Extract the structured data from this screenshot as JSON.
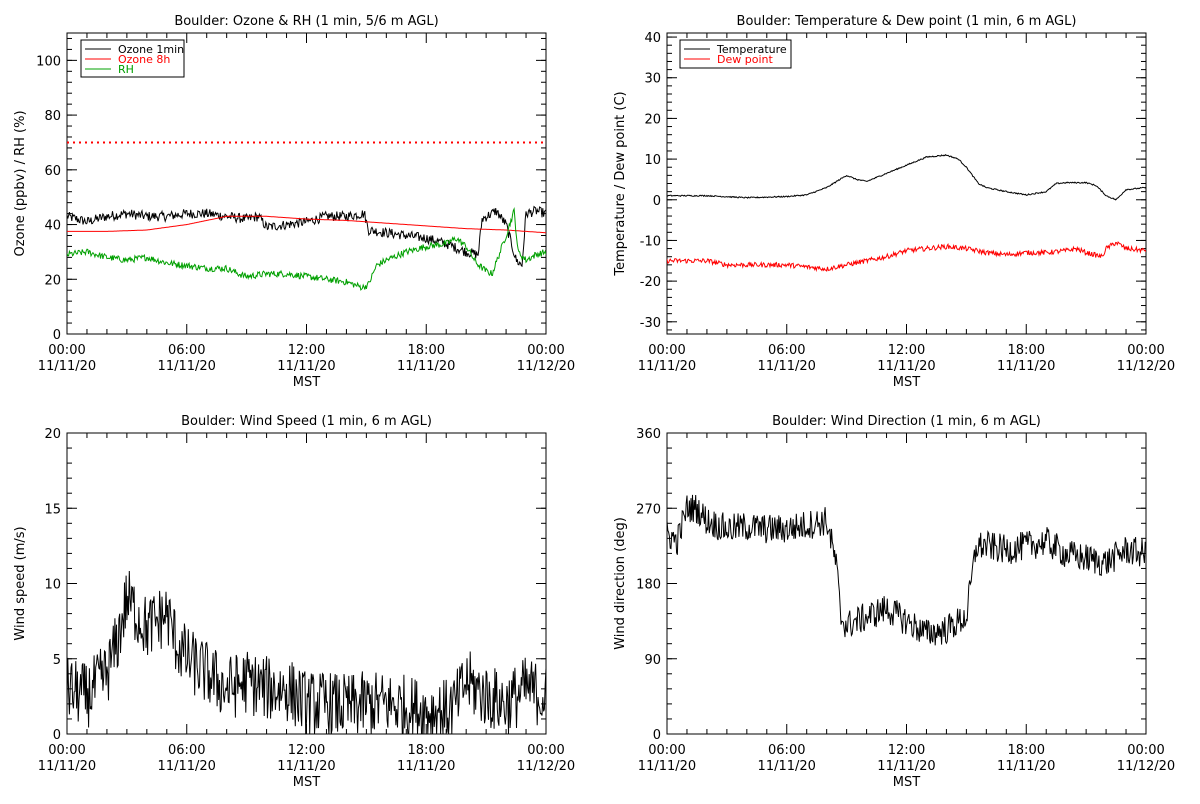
{
  "chart_data": [
    {
      "type": "line",
      "title": "Boulder: Ozone & RH (1 min, 5/6 m AGL)",
      "xlabel": "MST",
      "ylabel": "Ozone (ppbv) / RH (%)",
      "ylim": [
        0,
        110
      ],
      "y_ticks": [
        0,
        20,
        40,
        60,
        80,
        100
      ],
      "x_ticks": [
        {
          "hour": 0,
          "time": "00:00",
          "date": "11/11/20"
        },
        {
          "hour": 6,
          "time": "06:00",
          "date": "11/11/20"
        },
        {
          "hour": 12,
          "time": "12:00",
          "date": "11/11/20"
        },
        {
          "hour": 18,
          "time": "18:00",
          "date": "11/11/20"
        },
        {
          "hour": 24,
          "time": "00:00",
          "date": "11/12/20"
        }
      ],
      "legend_position": "top-left",
      "reference_line": {
        "y": 70,
        "color": "#ff0000",
        "style": "dotted"
      },
      "series": [
        {
          "name": "Ozone 1min",
          "color": "#000000",
          "noise": 1.8,
          "points": [
            [
              0,
              43
            ],
            [
              1,
              41
            ],
            [
              2,
              43
            ],
            [
              3,
              44
            ],
            [
              4,
              43
            ],
            [
              5,
              43
            ],
            [
              6,
              44
            ],
            [
              7,
              44
            ],
            [
              8,
              43
            ],
            [
              9,
              42
            ],
            [
              9.6,
              43
            ],
            [
              10,
              39
            ],
            [
              11,
              40
            ],
            [
              12,
              41
            ],
            [
              13,
              43
            ],
            [
              14,
              43
            ],
            [
              14.9,
              44
            ],
            [
              15.1,
              38
            ],
            [
              16,
              37
            ],
            [
              17,
              36
            ],
            [
              18,
              35
            ],
            [
              19,
              33
            ],
            [
              20,
              30
            ],
            [
              20.6,
              29
            ],
            [
              20.8,
              42
            ],
            [
              21.5,
              45
            ],
            [
              22,
              40
            ],
            [
              22.5,
              27
            ],
            [
              22.8,
              25
            ],
            [
              23,
              44
            ],
            [
              23.5,
              45
            ],
            [
              24,
              44
            ]
          ]
        },
        {
          "name": "Ozone 8h",
          "color": "#ff0000",
          "noise": 0,
          "points": [
            [
              0,
              37.5
            ],
            [
              2,
              37.5
            ],
            [
              4,
              38
            ],
            [
              6,
              40
            ],
            [
              8,
              43
            ],
            [
              10,
              43
            ],
            [
              12,
              42
            ],
            [
              14,
              41.5
            ],
            [
              16,
              40.5
            ],
            [
              18,
              39.5
            ],
            [
              20,
              38.5
            ],
            [
              22,
              38
            ],
            [
              24,
              37
            ]
          ]
        },
        {
          "name": "RH",
          "color": "#00a000",
          "noise": 1.2,
          "points": [
            [
              0,
              29
            ],
            [
              1,
              30
            ],
            [
              2,
              28
            ],
            [
              3,
              27
            ],
            [
              4,
              28
            ],
            [
              5,
              26
            ],
            [
              6,
              25
            ],
            [
              7,
              24
            ],
            [
              8,
              24
            ],
            [
              8.6,
              22
            ],
            [
              9,
              21
            ],
            [
              10,
              22
            ],
            [
              11,
              22
            ],
            [
              12,
              21
            ],
            [
              13,
              20
            ],
            [
              14,
              19
            ],
            [
              14.8,
              17
            ],
            [
              15.1,
              18
            ],
            [
              15.5,
              25
            ],
            [
              16,
              27
            ],
            [
              17,
              30
            ],
            [
              18,
              32
            ],
            [
              19,
              33
            ],
            [
              19.5,
              35
            ],
            [
              20,
              32
            ],
            [
              20.5,
              26
            ],
            [
              21,
              23
            ],
            [
              21.3,
              22
            ],
            [
              21.5,
              26
            ],
            [
              22,
              36
            ],
            [
              22.4,
              45
            ],
            [
              22.6,
              30
            ],
            [
              23,
              27
            ],
            [
              23.5,
              29
            ],
            [
              24,
              30
            ]
          ]
        }
      ]
    },
    {
      "type": "line",
      "title": "Boulder: Temperature & Dew point (1 min, 6 m AGL)",
      "xlabel": "MST",
      "ylabel": "Temperature / Dew point (C)",
      "ylim": [
        -33,
        41
      ],
      "y_ticks": [
        -30,
        -20,
        -10,
        0,
        10,
        20,
        30,
        40
      ],
      "x_ticks": [
        {
          "hour": 0,
          "time": "00:00",
          "date": "11/11/20"
        },
        {
          "hour": 6,
          "time": "06:00",
          "date": "11/11/20"
        },
        {
          "hour": 12,
          "time": "12:00",
          "date": "11/11/20"
        },
        {
          "hour": 18,
          "time": "18:00",
          "date": "11/11/20"
        },
        {
          "hour": 24,
          "time": "00:00",
          "date": "11/12/20"
        }
      ],
      "legend_position": "top-left",
      "series": [
        {
          "name": "Temperature",
          "color": "#000000",
          "noise": 0.15,
          "points": [
            [
              0,
              1
            ],
            [
              2,
              1
            ],
            [
              4,
              0.5
            ],
            [
              6,
              0.8
            ],
            [
              7,
              1.2
            ],
            [
              8,
              3
            ],
            [
              9,
              6
            ],
            [
              9.5,
              5
            ],
            [
              10,
              4.5
            ],
            [
              11,
              6.5
            ],
            [
              12,
              8.5
            ],
            [
              13,
              10.5
            ],
            [
              14,
              11
            ],
            [
              14.6,
              10
            ],
            [
              15,
              8
            ],
            [
              15.6,
              4
            ],
            [
              16,
              3
            ],
            [
              17,
              2
            ],
            [
              18,
              1.2
            ],
            [
              19,
              2
            ],
            [
              19.5,
              4
            ],
            [
              20,
              4.2
            ],
            [
              21,
              4.2
            ],
            [
              21.5,
              3.5
            ],
            [
              22,
              1
            ],
            [
              22.5,
              0
            ],
            [
              23,
              2.5
            ],
            [
              24,
              3
            ]
          ]
        },
        {
          "name": "Dew point",
          "color": "#ff0000",
          "noise": 0.6,
          "points": [
            [
              0,
              -15
            ],
            [
              2,
              -15
            ],
            [
              3,
              -16
            ],
            [
              4,
              -16
            ],
            [
              6,
              -16
            ],
            [
              7,
              -16.5
            ],
            [
              8,
              -17
            ],
            [
              9,
              -16
            ],
            [
              10,
              -15
            ],
            [
              11,
              -14
            ],
            [
              12,
              -12.5
            ],
            [
              13,
              -12
            ],
            [
              14,
              -11.5
            ],
            [
              15,
              -12
            ],
            [
              16,
              -13
            ],
            [
              17,
              -13.5
            ],
            [
              18,
              -13
            ],
            [
              19,
              -13
            ],
            [
              20,
              -12.5
            ],
            [
              20.5,
              -12
            ],
            [
              21,
              -13
            ],
            [
              21.8,
              -14
            ],
            [
              22,
              -12
            ],
            [
              22.5,
              -10.5
            ],
            [
              23,
              -12
            ],
            [
              24,
              -12.5
            ]
          ]
        }
      ]
    },
    {
      "type": "line",
      "title": "Boulder: Wind Speed (1 min, 6 m AGL)",
      "xlabel": "MST",
      "ylabel": "Wind speed (m/s)",
      "ylim": [
        0,
        20
      ],
      "y_ticks": [
        0,
        5,
        10,
        15,
        20
      ],
      "x_ticks": [
        {
          "hour": 0,
          "time": "00:00",
          "date": "11/11/20"
        },
        {
          "hour": 6,
          "time": "06:00",
          "date": "11/11/20"
        },
        {
          "hour": 12,
          "time": "12:00",
          "date": "11/11/20"
        },
        {
          "hour": 18,
          "time": "18:00",
          "date": "11/11/20"
        },
        {
          "hour": 24,
          "time": "00:00",
          "date": "11/12/20"
        }
      ],
      "series": [
        {
          "name": "",
          "color": "#000000",
          "noise": 2.2,
          "min": 0,
          "max": 15.8,
          "points": [
            [
              0,
              3
            ],
            [
              1,
              2.5
            ],
            [
              2,
              4
            ],
            [
              2.5,
              6
            ],
            [
              3,
              9
            ],
            [
              3.5,
              8
            ],
            [
              4,
              7
            ],
            [
              5,
              8
            ],
            [
              5.5,
              6
            ],
            [
              6,
              5
            ],
            [
              7,
              4
            ],
            [
              8,
              3
            ],
            [
              9,
              3.5
            ],
            [
              10,
              3
            ],
            [
              11,
              3
            ],
            [
              12,
              2
            ],
            [
              13,
              2
            ],
            [
              14,
              1.8
            ],
            [
              15,
              2
            ],
            [
              16,
              2
            ],
            [
              17,
              1.8
            ],
            [
              18,
              1.5
            ],
            [
              19,
              1.5
            ],
            [
              19.5,
              2
            ],
            [
              20,
              3.5
            ],
            [
              20.5,
              3
            ],
            [
              21,
              2.5
            ],
            [
              22,
              2
            ],
            [
              23,
              3
            ],
            [
              24,
              2.5
            ]
          ]
        }
      ]
    },
    {
      "type": "line",
      "title": "Boulder: Wind Direction (1 min, 6 m AGL)",
      "xlabel": "MST",
      "ylabel": "Wind direction (deg)",
      "ylim": [
        0,
        360
      ],
      "y_ticks": [
        0,
        90,
        180,
        270,
        360
      ],
      "x_ticks": [
        {
          "hour": 0,
          "time": "00:00",
          "date": "11/11/20"
        },
        {
          "hour": 6,
          "time": "06:00",
          "date": "11/11/20"
        },
        {
          "hour": 12,
          "time": "12:00",
          "date": "11/11/20"
        },
        {
          "hour": 18,
          "time": "18:00",
          "date": "11/11/20"
        },
        {
          "hour": 24,
          "time": "00:00",
          "date": "11/12/20"
        }
      ],
      "series": [
        {
          "name": "",
          "color": "#000000",
          "noise": 18,
          "min": 0,
          "max": 360,
          "points": [
            [
              0,
              240
            ],
            [
              0.5,
              230
            ],
            [
              1,
              270
            ],
            [
              1.5,
              270
            ],
            [
              2,
              255
            ],
            [
              3,
              245
            ],
            [
              4,
              248
            ],
            [
              5,
              245
            ],
            [
              6,
              245
            ],
            [
              7,
              250
            ],
            [
              8,
              255
            ],
            [
              8.5,
              200
            ],
            [
              8.7,
              140
            ],
            [
              9,
              130
            ],
            [
              10,
              140
            ],
            [
              11,
              150
            ],
            [
              12,
              135
            ],
            [
              13,
              120
            ],
            [
              14,
              125
            ],
            [
              15,
              140
            ],
            [
              15.5,
              225
            ],
            [
              16,
              225
            ],
            [
              17,
              220
            ],
            [
              18,
              225
            ],
            [
              19,
              230
            ],
            [
              20,
              215
            ],
            [
              21,
              210
            ],
            [
              22,
              205
            ],
            [
              23,
              220
            ],
            [
              24,
              215
            ]
          ]
        }
      ]
    }
  ]
}
